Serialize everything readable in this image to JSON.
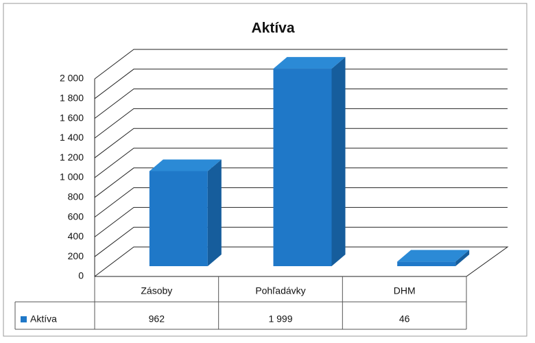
{
  "chart_data": {
    "type": "bar3d",
    "title": "Aktíva",
    "categories": [
      "Zásoby",
      "Pohľadávky",
      "DHM"
    ],
    "series": [
      {
        "name": "Aktíva",
        "color": "#1f78c8",
        "values": [
          962,
          1999,
          46
        ],
        "value_labels": [
          "962",
          "1 999",
          "46"
        ]
      }
    ],
    "ylim": [
      0,
      2000
    ],
    "yticks": [
      0,
      200,
      400,
      600,
      800,
      {
        "value": 1000,
        "label": "1 000"
      },
      {
        "value": 1200,
        "label": "1 200"
      },
      {
        "value": 1400,
        "label": "1 400"
      },
      {
        "value": 1600,
        "label": "1 600"
      },
      {
        "value": 1800,
        "label": "1 800"
      },
      {
        "value": 2000,
        "label": "2 000"
      }
    ],
    "grid": true,
    "data_table": true
  }
}
